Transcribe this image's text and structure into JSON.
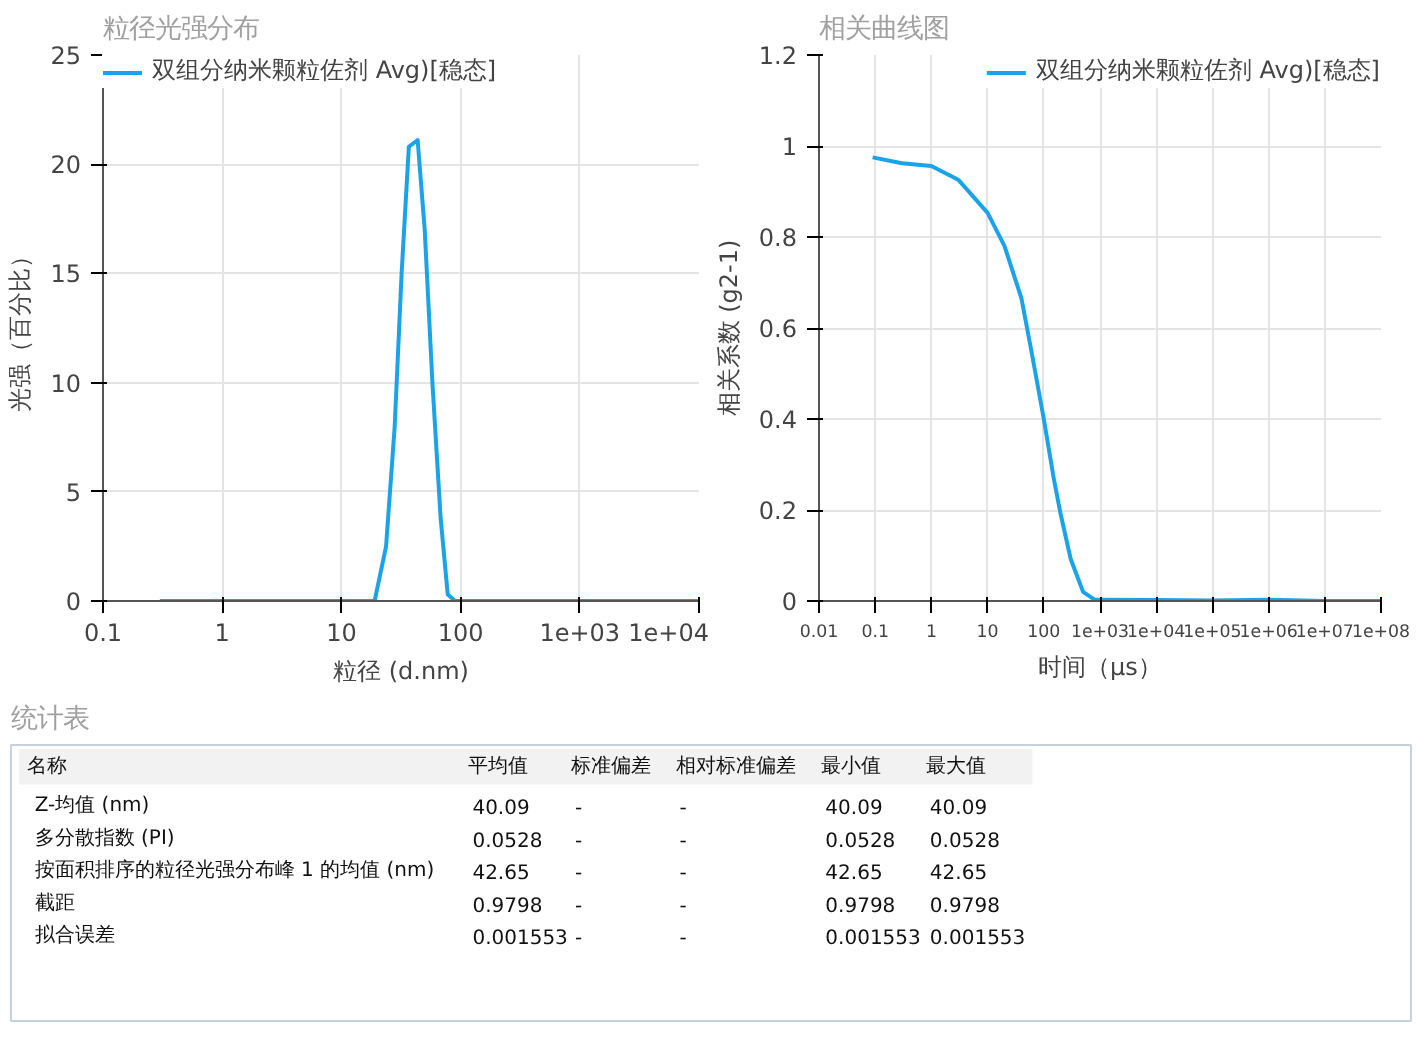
{
  "chart_data": [
    {
      "type": "line",
      "title": "粒径光强分布",
      "xlabel": "粒径 (d.nm)",
      "ylabel": "光强（百分比）",
      "log": "x",
      "grid": true,
      "legend": "top left",
      "xlim": [
        0.1,
        10000
      ],
      "xticks": [
        0.1,
        1,
        10,
        100,
        {
          "value": 1000,
          "label": "1e+03"
        },
        {
          "value": 10000,
          "label": "1e+04"
        }
      ],
      "ylim": [
        0,
        25
      ],
      "yticks": [
        0,
        5,
        10,
        15,
        20,
        25
      ],
      "x": [
        0.3,
        1,
        10,
        19,
        23.7,
        28,
        32,
        36.8,
        43.6,
        50,
        58,
        68,
        78,
        90,
        1000,
        10000
      ],
      "series": [
        {
          "name": "双组分纳米颗粒佐剂 Avg)[稳态]",
          "color": "#1aa3e8",
          "values": [
            0,
            0,
            0,
            0,
            2.5,
            8,
            15,
            20.8,
            21.1,
            17,
            10,
            3.8,
            0.3,
            0,
            0,
            0
          ]
        }
      ]
    },
    {
      "type": "line",
      "title": "相关曲线图",
      "xlabel": "时间（μs）",
      "ylabel": "相关系数 (g2-1)",
      "log": "x",
      "grid": true,
      "legend": "top right",
      "xlim": [
        0.01,
        100000000
      ],
      "xticks": [
        0.01,
        0.1,
        1,
        10,
        100,
        {
          "value": 1000,
          "label": "1e+03"
        },
        {
          "value": 10000,
          "label": "1e+04"
        },
        {
          "value": 100000,
          "label": "1e+05"
        },
        {
          "value": 1000000,
          "label": "1e+06"
        },
        {
          "value": 10000000,
          "label": "1e+07"
        },
        {
          "value": 100000000,
          "label": "1e+08"
        }
      ],
      "ylim": [
        0,
        1.2
      ],
      "yticks": [
        0,
        0.2,
        0.4,
        0.6,
        0.8,
        1,
        1.2
      ],
      "x": [
        0.09,
        0.3,
        1,
        3,
        10,
        20,
        40,
        60,
        100,
        150,
        200,
        300,
        500,
        800,
        1000,
        10000,
        100000,
        1000000,
        10000000,
        100000000
      ],
      "series": [
        {
          "name": "双组分纳米颗粒佐剂 Avg)[稳态]",
          "color": "#1aa3e8",
          "values": [
            0.975,
            0.962,
            0.956,
            0.926,
            0.853,
            0.78,
            0.665,
            0.55,
            0.4,
            0.27,
            0.19,
            0.093,
            0.02,
            0.003,
            0.003,
            0.002,
            0.001,
            0.003,
            0,
            0
          ]
        }
      ]
    },
    {
      "type": "other",
      "title": "统计表",
      "categories": [
        "名称",
        "平均值",
        "标准偏差",
        "相对标准偏差",
        "最小值",
        "最大值"
      ],
      "y_categories": [
        "Z-均值 (nm)",
        "多分散指数 (PI)",
        "按面积排序的粒径光强分布峰 1 的均值 (nm)",
        "截距",
        "拟合误差"
      ],
      "cell_labels": [
        [
          "40.09",
          "-",
          "-",
          "40.09",
          "40.09"
        ],
        [
          "0.0528",
          "-",
          "-",
          "0.0528",
          "0.0528"
        ],
        [
          "42.65",
          "-",
          "-",
          "42.65",
          "42.65"
        ],
        [
          "0.9798",
          "-",
          "-",
          "0.9798",
          "0.9798"
        ],
        [
          "0.001553",
          "-",
          "-",
          "0.001553",
          "0.001553"
        ]
      ]
    }
  ]
}
